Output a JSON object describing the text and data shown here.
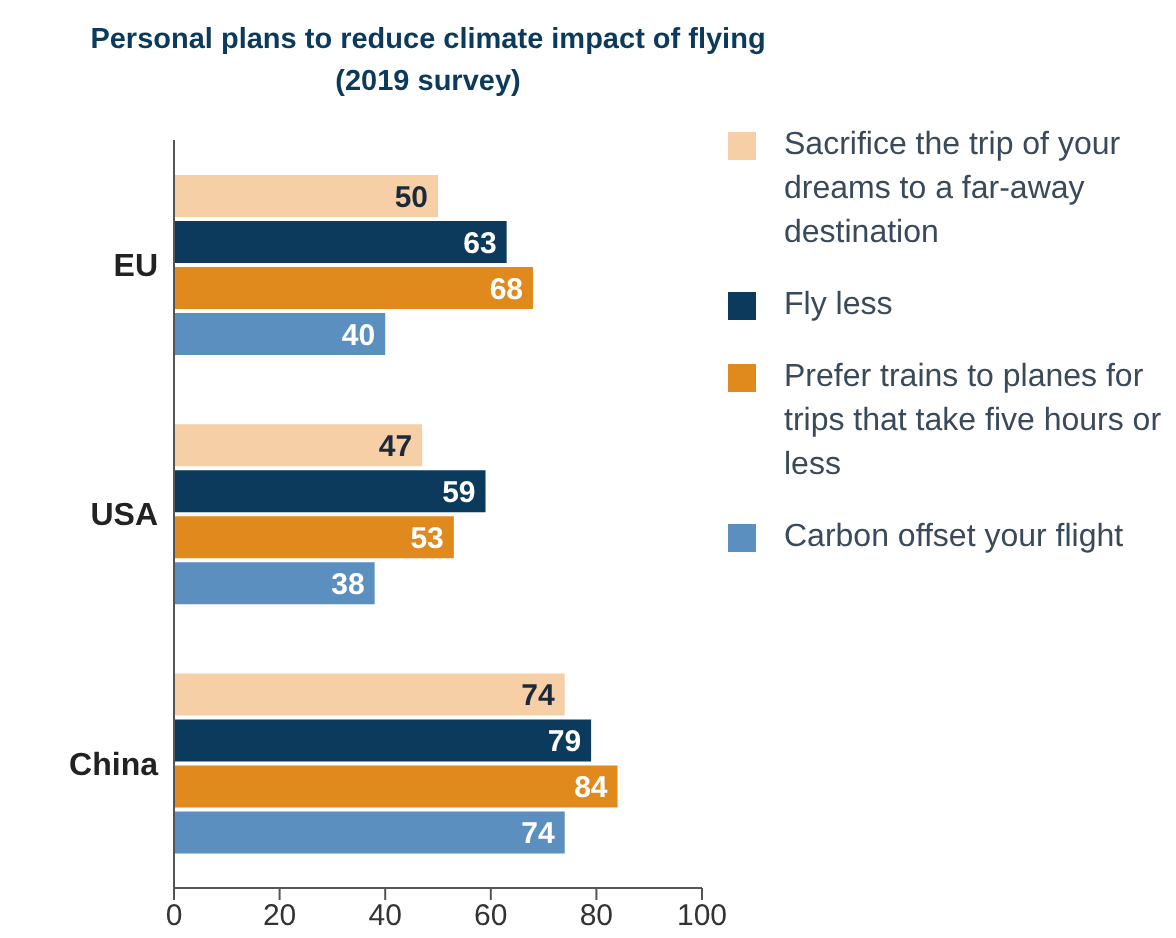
{
  "chart_data": {
    "type": "bar",
    "orientation": "horizontal",
    "title": "Personal plans to reduce climate impact of flying",
    "subtitle": "(2019 survey)",
    "categories": [
      "EU",
      "USA",
      "China"
    ],
    "series": [
      {
        "name": "Sacrifice the trip of your dreams to a far-away destination",
        "color": "#f6cfa6",
        "values": [
          50,
          47,
          74
        ]
      },
      {
        "name": "Fly less",
        "color": "#0b3a5c",
        "values": [
          63,
          59,
          79
        ]
      },
      {
        "name": "Prefer trains to planes for trips that take five hours or less",
        "color": "#e08a1e",
        "values": [
          68,
          53,
          84
        ]
      },
      {
        "name": "Carbon offset your flight",
        "color": "#5b8fc0",
        "values": [
          40,
          38,
          74
        ]
      }
    ],
    "xlim": [
      0,
      100
    ],
    "xticks": [
      0,
      20,
      40,
      60,
      80,
      100
    ],
    "data_labels": true,
    "legend": "right",
    "grid": false
  }
}
